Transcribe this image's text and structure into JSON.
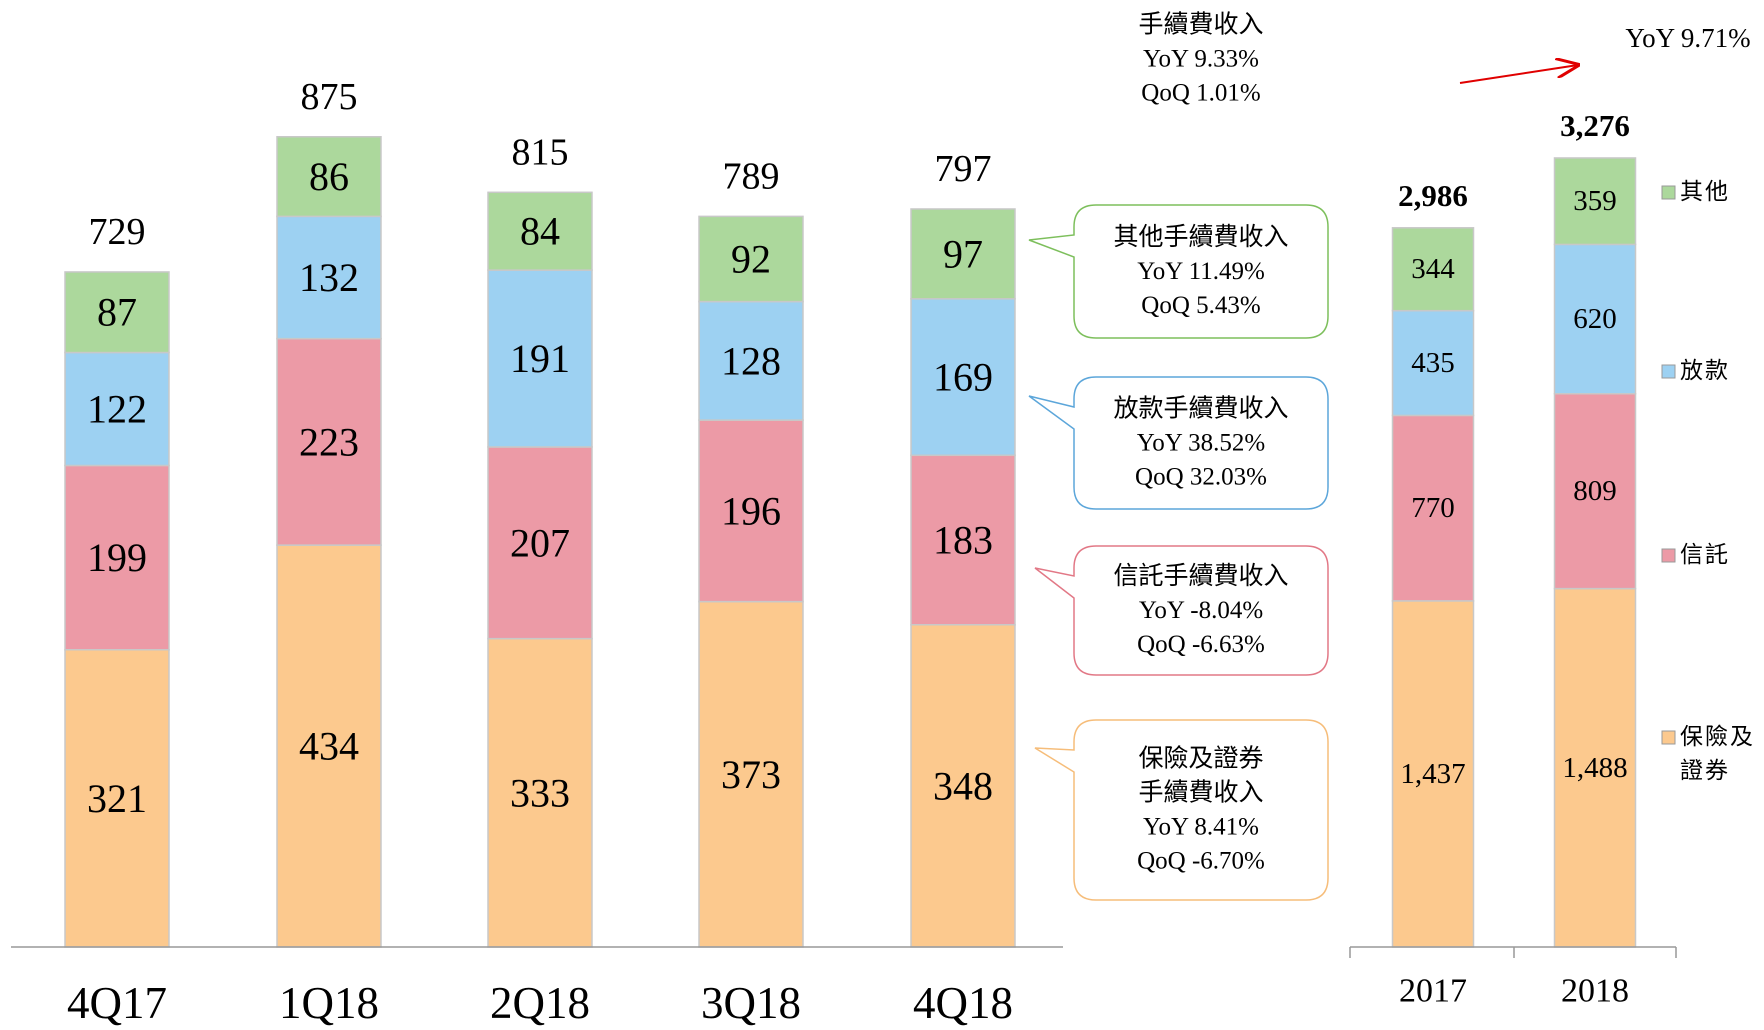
{
  "chart_data": [
    {
      "type": "bar",
      "stacked": true,
      "categories": [
        "4Q17",
        "1Q18",
        "2Q18",
        "3Q18",
        "4Q18"
      ],
      "series": [
        {
          "color": "#fcc98e",
          "values": [
            321,
            434,
            333,
            373,
            348
          ]
        },
        {
          "color": "#ec9aa6",
          "values": [
            199,
            223,
            207,
            196,
            183
          ]
        },
        {
          "color": "#9dd1f2",
          "values": [
            122,
            132,
            191,
            128,
            169
          ]
        },
        {
          "color": "#acd89c",
          "values": [
            87,
            86,
            84,
            92,
            97
          ]
        }
      ],
      "totals": [
        729,
        875,
        815,
        789,
        797
      ],
      "ylim": [
        0,
        1000
      ],
      "annotation": [
        "手續費收入",
        "YoY 9.33%",
        "QoQ 1.01%"
      ],
      "callouts": [
        {
          "color": "#7dbf5c",
          "lines": [
            "其他手續費收入",
            "YoY 11.49%",
            "QoQ 5.43%"
          ]
        },
        {
          "color": "#5ca6da",
          "lines": [
            "放款手續費收入",
            "YoY 38.52%",
            "QoQ  32.03%"
          ]
        },
        {
          "color": "#e27886",
          "lines": [
            "信託手續費收入",
            "YoY -8.04%",
            "QoQ  -6.63%"
          ]
        },
        {
          "color": "#f6bd7a",
          "lines": [
            "保險及證券",
            "手續費收入",
            "YoY 8.41%",
            "QoQ -6.70%"
          ]
        }
      ]
    },
    {
      "type": "bar",
      "stacked": true,
      "categories": [
        "2017",
        "2018"
      ],
      "series": [
        {
          "name": "保險及證券",
          "color": "#fcc98e",
          "values": [
            1437,
            1488
          ],
          "value_labels": [
            "1,437",
            "1,488"
          ]
        },
        {
          "name": "信託",
          "color": "#ec9aa6",
          "values": [
            770,
            809
          ]
        },
        {
          "name": "放款",
          "color": "#9dd1f2",
          "values": [
            435,
            620
          ]
        },
        {
          "name": "其他",
          "color": "#acd89c",
          "values": [
            344,
            359
          ]
        }
      ],
      "totals": [
        2986,
        3276
      ],
      "totals_labels": [
        "2,986",
        "3,276"
      ],
      "ylim": [
        0,
        3500
      ],
      "annotation": "YoY 9.71%",
      "legend": "right"
    }
  ]
}
